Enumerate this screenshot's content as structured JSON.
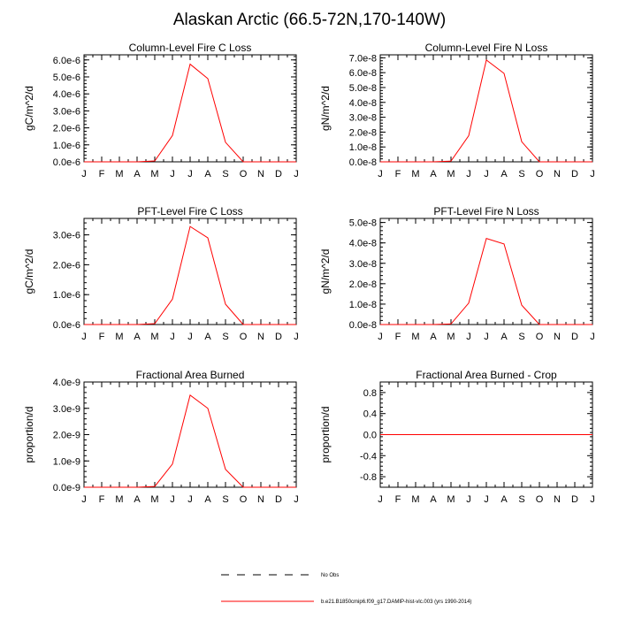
{
  "title": "Alaskan Arctic (66.5-72N,170-140W)",
  "month_labels": [
    "J",
    "F",
    "M",
    "A",
    "M",
    "J",
    "J",
    "A",
    "S",
    "O",
    "N",
    "D",
    "J"
  ],
  "legend": {
    "items": [
      {
        "label": "No Obs",
        "style": "dashed",
        "color": "#000000"
      },
      {
        "label": "b.e21.B1850cmip6.f09_g17.DAMIP-hist-vlc.003 (yrs 1990-2014)",
        "style": "solid",
        "color": "#ff0000"
      }
    ]
  },
  "chart_data": [
    {
      "type": "line",
      "title": "Column-Level Fire C Loss",
      "ylabel": "gC/m^2/d",
      "xlabel": "",
      "x": [
        "J",
        "F",
        "M",
        "A",
        "M",
        "J",
        "J",
        "A",
        "S",
        "O",
        "N",
        "D",
        "J"
      ],
      "ylim": [
        0,
        6.3e-06
      ],
      "yticks": [
        0,
        1e-06,
        2e-06,
        3e-06,
        4e-06,
        5e-06,
        6e-06
      ],
      "yticklabels": [
        "0.0e-6",
        "1.0e-6",
        "2.0e-6",
        "3.0e-6",
        "4.0e-6",
        "5.0e-6",
        "6.0e-6"
      ],
      "series": [
        {
          "color": "#ff0000",
          "values": [
            0,
            0,
            0,
            0,
            5e-08,
            1.55e-06,
            5.75e-06,
            4.9e-06,
            1.15e-06,
            0,
            0,
            0,
            0
          ]
        }
      ]
    },
    {
      "type": "line",
      "title": "Column-Level Fire N Loss",
      "ylabel": "gN/m^2/d",
      "xlabel": "",
      "x": [
        "J",
        "F",
        "M",
        "A",
        "M",
        "J",
        "J",
        "A",
        "S",
        "O",
        "N",
        "D",
        "J"
      ],
      "ylim": [
        0,
        7.2e-08
      ],
      "yticks": [
        0,
        1e-08,
        2e-08,
        3e-08,
        4e-08,
        5e-08,
        6e-08,
        7e-08
      ],
      "yticklabels": [
        "0.0e-8",
        "1.0e-8",
        "2.0e-8",
        "3.0e-8",
        "4.0e-8",
        "5.0e-8",
        "6.0e-8",
        "7.0e-8"
      ],
      "series": [
        {
          "color": "#ff0000",
          "values": [
            0,
            0,
            0,
            0,
            5e-10,
            1.75e-08,
            6.85e-08,
            5.95e-08,
            1.35e-08,
            0,
            0,
            0,
            0
          ]
        }
      ]
    },
    {
      "type": "line",
      "title": "PFT-Level Fire C Loss",
      "ylabel": "gC/m^2/d",
      "xlabel": "",
      "x": [
        "J",
        "F",
        "M",
        "A",
        "M",
        "J",
        "J",
        "A",
        "S",
        "O",
        "N",
        "D",
        "J"
      ],
      "ylim": [
        0,
        3.55e-06
      ],
      "yticks": [
        0,
        1e-06,
        2e-06,
        3e-06
      ],
      "yticklabels": [
        "0.0e-6",
        "1.0e-6",
        "2.0e-6",
        "3.0e-6"
      ],
      "series": [
        {
          "color": "#ff0000",
          "values": [
            0,
            0,
            0,
            0,
            3e-08,
            8.5e-07,
            3.28e-06,
            2.9e-06,
            6.8e-07,
            0,
            0,
            0,
            0
          ]
        }
      ]
    },
    {
      "type": "line",
      "title": "PFT-Level Fire N Loss",
      "ylabel": "gN/m^2/d",
      "xlabel": "",
      "x": [
        "J",
        "F",
        "M",
        "A",
        "M",
        "J",
        "J",
        "A",
        "S",
        "O",
        "N",
        "D",
        "J"
      ],
      "ylim": [
        0,
        5.2e-08
      ],
      "yticks": [
        0,
        1e-08,
        2e-08,
        3e-08,
        4e-08,
        5e-08
      ],
      "yticklabels": [
        "0.0e-8",
        "1.0e-8",
        "2.0e-8",
        "3.0e-8",
        "4.0e-8",
        "5.0e-8"
      ],
      "series": [
        {
          "color": "#ff0000",
          "values": [
            0,
            0,
            0,
            0,
            3e-10,
            1.05e-08,
            4.22e-08,
            3.95e-08,
            9.5e-09,
            0,
            0,
            0,
            0
          ]
        }
      ]
    },
    {
      "type": "line",
      "title": "Fractional Area Burned",
      "ylabel": "proportion/d",
      "xlabel": "",
      "x": [
        "J",
        "F",
        "M",
        "A",
        "M",
        "J",
        "J",
        "A",
        "S",
        "O",
        "N",
        "D",
        "J"
      ],
      "ylim": [
        0,
        4e-09
      ],
      "yticks": [
        0,
        1e-09,
        2e-09,
        3e-09,
        4e-09
      ],
      "yticklabels": [
        "0.0e-9",
        "1.0e-9",
        "2.0e-9",
        "3.0e-9",
        "4.0e-9"
      ],
      "series": [
        {
          "color": "#ff0000",
          "values": [
            0,
            0,
            0,
            0,
            3e-11,
            8.8e-10,
            3.5e-09,
            3e-09,
            6.8e-10,
            0,
            0,
            0,
            0
          ]
        }
      ]
    },
    {
      "type": "line",
      "title": "Fractional Area Burned - Crop",
      "ylabel": "proportion/d",
      "xlabel": "",
      "x": [
        "J",
        "F",
        "M",
        "A",
        "M",
        "J",
        "J",
        "A",
        "S",
        "O",
        "N",
        "D",
        "J"
      ],
      "ylim": [
        -1.0,
        1.0
      ],
      "yticks": [
        -0.8,
        -0.4,
        0,
        0.4,
        0.8
      ],
      "yticklabels": [
        "-0.8",
        "-0.4",
        "0.0",
        "0.4",
        "0.8"
      ],
      "series": [
        {
          "color": "#ff0000",
          "values": [
            0,
            0,
            0,
            0,
            0,
            0,
            0,
            0,
            0,
            0,
            0,
            0,
            0
          ]
        }
      ]
    }
  ]
}
